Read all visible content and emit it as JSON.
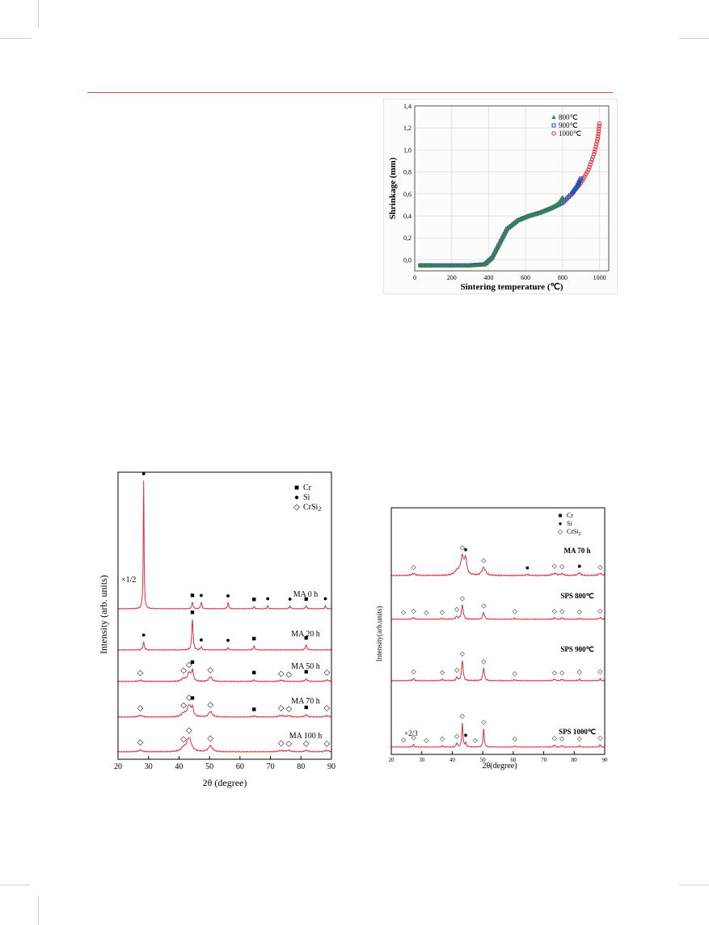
{
  "chart_data": [
    {
      "type": "scatter",
      "ylabel": "Shrinkage (mm)",
      "xlabel": "Sintering temperature (℃)",
      "xlim": [
        0,
        1050
      ],
      "ylim": [
        -0.1,
        1.4
      ],
      "xticks": [
        "0",
        "200",
        "400",
        "600",
        "800",
        "1000"
      ],
      "yticks": [
        "0,0",
        "0,2",
        "0,4",
        "0,6",
        "0,8",
        "1,0",
        "1,2",
        "1,4"
      ],
      "legend_position": "top-right",
      "series": [
        {
          "name": "800℃",
          "marker": "triangle",
          "color": "#2e8b3e",
          "x": [
            30,
            100,
            200,
            300,
            380,
            420,
            460,
            500,
            560,
            620,
            680,
            740,
            780,
            800
          ],
          "y": [
            -0.05,
            -0.05,
            -0.05,
            -0.05,
            -0.04,
            0.02,
            0.15,
            0.28,
            0.36,
            0.4,
            0.43,
            0.47,
            0.52,
            0.57
          ]
        },
        {
          "name": "900℃",
          "marker": "square",
          "color": "#2a4fb5",
          "x": [
            30,
            100,
            200,
            300,
            380,
            420,
            460,
            500,
            560,
            620,
            680,
            740,
            800,
            850,
            880,
            900
          ],
          "y": [
            -0.05,
            -0.05,
            -0.05,
            -0.05,
            -0.04,
            0.02,
            0.15,
            0.28,
            0.36,
            0.4,
            0.43,
            0.47,
            0.52,
            0.6,
            0.67,
            0.74
          ]
        },
        {
          "name": "1000℃",
          "marker": "circle",
          "color": "#e0303a",
          "x": [
            30,
            100,
            200,
            300,
            380,
            420,
            460,
            500,
            560,
            620,
            680,
            740,
            800,
            850,
            900,
            940,
            970,
            990,
            1000
          ],
          "y": [
            -0.05,
            -0.05,
            -0.05,
            -0.05,
            -0.04,
            0.02,
            0.15,
            0.28,
            0.36,
            0.4,
            0.43,
            0.47,
            0.52,
            0.6,
            0.7,
            0.82,
            0.96,
            1.1,
            1.24
          ]
        }
      ]
    },
    {
      "type": "line",
      "ylabel": "Intensity (arb. units)",
      "xlabel": "2θ  (degree)",
      "xlim": [
        20,
        90
      ],
      "xticks": [
        "20",
        "30",
        "40",
        "50",
        "60",
        "70",
        "80",
        "90"
      ],
      "legend": [
        {
          "symbol": "■",
          "label": "Cr"
        },
        {
          "symbol": "●",
          "label": "Si"
        },
        {
          "symbol": "◇",
          "label": "CrSi",
          "sub": "2"
        }
      ],
      "line_color": "#e0303a",
      "scale_note": "×1/2",
      "series": [
        {
          "name": "MA 0 h",
          "peaks": [
            [
              28.4,
              44,
              0.15
            ],
            [
              44.4,
              2.3,
              0.25
            ],
            [
              47.3,
              2.3,
              0.25
            ],
            [
              56.1,
              2,
              0.25
            ],
            [
              64.6,
              0.8,
              0.25
            ],
            [
              69.1,
              1,
              0.25
            ],
            [
              76.4,
              1,
              0.25
            ],
            [
              81.7,
              1,
              0.25
            ],
            [
              88,
              1,
              0.25
            ]
          ],
          "markers": [
            [
              28.4,
              "●"
            ],
            [
              44.4,
              "■"
            ],
            [
              47.3,
              "●"
            ],
            [
              56.1,
              "●"
            ],
            [
              64.6,
              "■"
            ],
            [
              69.1,
              "●"
            ],
            [
              76.4,
              "●"
            ],
            [
              81.7,
              "■"
            ],
            [
              88,
              "●"
            ]
          ]
        },
        {
          "name": "MA 20 h",
          "peaks": [
            [
              28.4,
              2.2,
              0.3
            ],
            [
              44.4,
              9,
              0.25
            ],
            [
              47.3,
              0.8,
              0.3
            ],
            [
              56.1,
              0.6,
              0.3
            ],
            [
              64.6,
              1.1,
              0.3
            ],
            [
              81.7,
              1.5,
              0.3
            ]
          ],
          "markers": [
            [
              28.4,
              "●"
            ],
            [
              44.4,
              "■"
            ],
            [
              47.3,
              "●"
            ],
            [
              56.1,
              "●"
            ],
            [
              64.6,
              "■"
            ],
            [
              81.7,
              "■"
            ]
          ]
        },
        {
          "name": "MA 50 h",
          "peaks": [
            [
              27.3,
              0.4,
              0.7
            ],
            [
              41.5,
              0.8,
              0.8
            ],
            [
              43.3,
              2.5,
              0.6
            ],
            [
              44.4,
              3,
              0.35
            ],
            [
              50.3,
              1.4,
              0.6
            ],
            [
              64.6,
              0.4,
              0.5
            ],
            [
              73.5,
              0.4,
              0.8
            ],
            [
              81.7,
              0.7,
              0.5
            ],
            [
              88.5,
              0.4,
              0.8
            ]
          ],
          "markers": [
            [
              27.3,
              "◇"
            ],
            [
              41.5,
              "◇"
            ],
            [
              43.3,
              "◇"
            ],
            [
              44.4,
              "■"
            ],
            [
              50.3,
              "◇"
            ],
            [
              64.6,
              "■"
            ],
            [
              73.5,
              "◇"
            ],
            [
              76,
              "◇"
            ],
            [
              81.7,
              "■"
            ],
            [
              88.5,
              "◇"
            ]
          ]
        },
        {
          "name": "MA 70 h",
          "peaks": [
            [
              27.3,
              0.5,
              0.8
            ],
            [
              41.5,
              1,
              0.9
            ],
            [
              43.3,
              3.2,
              0.7
            ],
            [
              44.4,
              2.4,
              0.4
            ],
            [
              50.3,
              1.6,
              0.7
            ],
            [
              64.6,
              0.3,
              0.6
            ],
            [
              73.5,
              0.5,
              0.9
            ],
            [
              76,
              0.4,
              0.7
            ],
            [
              81.7,
              0.6,
              0.6
            ],
            [
              88.5,
              0.4,
              0.8
            ]
          ],
          "markers": [
            [
              27.3,
              "◇"
            ],
            [
              41.5,
              "◇"
            ],
            [
              43.3,
              "◇"
            ],
            [
              44.4,
              "■"
            ],
            [
              50.3,
              "◇"
            ],
            [
              64.6,
              "■"
            ],
            [
              73.5,
              "◇"
            ],
            [
              76,
              "◇"
            ],
            [
              81.7,
              "■"
            ],
            [
              88.5,
              "◇"
            ]
          ]
        },
        {
          "name": "MA 100 h",
          "peaks": [
            [
              27.3,
              0.5,
              0.8
            ],
            [
              41.5,
              1,
              0.9
            ],
            [
              43.3,
              4,
              0.9
            ],
            [
              50.3,
              1.7,
              0.8
            ],
            [
              73.5,
              0.4,
              0.9
            ],
            [
              76,
              0.4,
              0.8
            ],
            [
              81.7,
              0.4,
              0.8
            ],
            [
              88.5,
              0.4,
              0.9
            ]
          ],
          "markers": [
            [
              27.3,
              "◇"
            ],
            [
              41.5,
              "◇"
            ],
            [
              43.3,
              "◇"
            ],
            [
              50.3,
              "◇"
            ],
            [
              73.5,
              "◇"
            ],
            [
              76,
              "◇"
            ],
            [
              81.7,
              "◇"
            ],
            [
              88.5,
              "◇"
            ]
          ]
        }
      ]
    },
    {
      "type": "line",
      "ylabel": "Intensity(arb.units)",
      "xlabel": "2θ(degree)",
      "xlim": [
        20,
        90
      ],
      "xticks": [
        "20",
        "30",
        "40",
        "50",
        "60",
        "70",
        "80",
        "90"
      ],
      "legend": [
        {
          "symbol": "■",
          "label": "Cr"
        },
        {
          "symbol": "●",
          "label": "Si"
        },
        {
          "symbol": "◇",
          "label": "CrSi",
          "sub": "2"
        }
      ],
      "line_color": "#e0303a",
      "scale_note": "×2/3",
      "series": [
        {
          "name": "MA 70 h",
          "peaks": [
            [
              27.3,
              0.5,
              0.8
            ],
            [
              41.5,
              1,
              0.9
            ],
            [
              43.3,
              4.5,
              0.7
            ],
            [
              44.4,
              3.5,
              0.4
            ],
            [
              50.3,
              2,
              0.7
            ],
            [
              64.6,
              0.3,
              0.6
            ],
            [
              73.5,
              0.5,
              0.9
            ],
            [
              76,
              0.4,
              0.7
            ],
            [
              81.7,
              0.7,
              0.6
            ],
            [
              88.5,
              0.5,
              0.8
            ]
          ],
          "markers": [
            [
              27.3,
              "◇"
            ],
            [
              43.3,
              "◇"
            ],
            [
              44.4,
              "■"
            ],
            [
              50.3,
              "◇"
            ],
            [
              64.6,
              "■"
            ],
            [
              73.5,
              "◇"
            ],
            [
              76,
              "◇"
            ],
            [
              81.7,
              "■"
            ],
            [
              88.5,
              "◇"
            ]
          ]
        },
        {
          "name": "SPS 800℃",
          "peaks": [
            [
              27.3,
              0.5,
              0.4
            ],
            [
              36.7,
              0.3,
              0.4
            ],
            [
              41.5,
              0.8,
              0.4
            ],
            [
              43.3,
              4.2,
              0.35
            ],
            [
              50.3,
              2,
              0.35
            ],
            [
              60.5,
              0.3,
              0.4
            ],
            [
              73.5,
              0.4,
              0.4
            ],
            [
              76,
              0.4,
              0.4
            ],
            [
              81.7,
              0.3,
              0.4
            ],
            [
              88.5,
              0.5,
              0.4
            ]
          ],
          "markers": [
            [
              24,
              "◇"
            ],
            [
              27.3,
              "◇"
            ],
            [
              31.5,
              "◇"
            ],
            [
              36.7,
              "◇"
            ],
            [
              41.5,
              "◇"
            ],
            [
              43.3,
              "◇"
            ],
            [
              50.3,
              "◇"
            ],
            [
              60.5,
              "◇"
            ],
            [
              73.5,
              "◇"
            ],
            [
              76,
              "◇"
            ],
            [
              81.7,
              "◇"
            ],
            [
              88.5,
              "◇"
            ]
          ]
        },
        {
          "name": "SPS 900℃",
          "peaks": [
            [
              27.3,
              0.6,
              0.3
            ],
            [
              36.7,
              0.4,
              0.3
            ],
            [
              41.5,
              0.9,
              0.3
            ],
            [
              43.3,
              5.5,
              0.3
            ],
            [
              50.3,
              3.5,
              0.3
            ],
            [
              60.5,
              0.3,
              0.3
            ],
            [
              73.5,
              0.5,
              0.3
            ],
            [
              76,
              0.4,
              0.3
            ],
            [
              81.7,
              0.4,
              0.3
            ],
            [
              88.5,
              0.5,
              0.3
            ]
          ],
          "markers": [
            [
              27.3,
              "◇"
            ],
            [
              36.7,
              "◇"
            ],
            [
              41.5,
              "◇"
            ],
            [
              43.3,
              "◇"
            ],
            [
              50.3,
              "◇"
            ],
            [
              60.5,
              "◇"
            ],
            [
              73.5,
              "◇"
            ],
            [
              76,
              "◇"
            ],
            [
              81.7,
              "◇"
            ],
            [
              88.5,
              "◇"
            ]
          ]
        },
        {
          "name": "SPS 1000℃",
          "peaks": [
            [
              27.3,
              1,
              0.25
            ],
            [
              36.7,
              0.5,
              0.25
            ],
            [
              41.5,
              1.5,
              0.25
            ],
            [
              43.3,
              9,
              0.22
            ],
            [
              44.4,
              1.5,
              0.25
            ],
            [
              50.3,
              7,
              0.22
            ],
            [
              60.5,
              0.5,
              0.25
            ],
            [
              73.5,
              0.8,
              0.25
            ],
            [
              76,
              0.7,
              0.25
            ],
            [
              81.7,
              0.5,
              0.25
            ],
            [
              88.5,
              0.8,
              0.25
            ]
          ],
          "markers": [
            [
              24,
              "◇"
            ],
            [
              27.3,
              "◇"
            ],
            [
              31.5,
              "◇"
            ],
            [
              36.7,
              "◇"
            ],
            [
              41.5,
              "◇"
            ],
            [
              43.3,
              "◇"
            ],
            [
              44.4,
              "■"
            ],
            [
              47.5,
              "◇"
            ],
            [
              50.3,
              "◇"
            ],
            [
              60.5,
              "◇"
            ],
            [
              73.5,
              "◇"
            ],
            [
              76,
              "◇"
            ],
            [
              81.7,
              "◇"
            ],
            [
              88.5,
              "◇"
            ]
          ]
        }
      ]
    }
  ]
}
